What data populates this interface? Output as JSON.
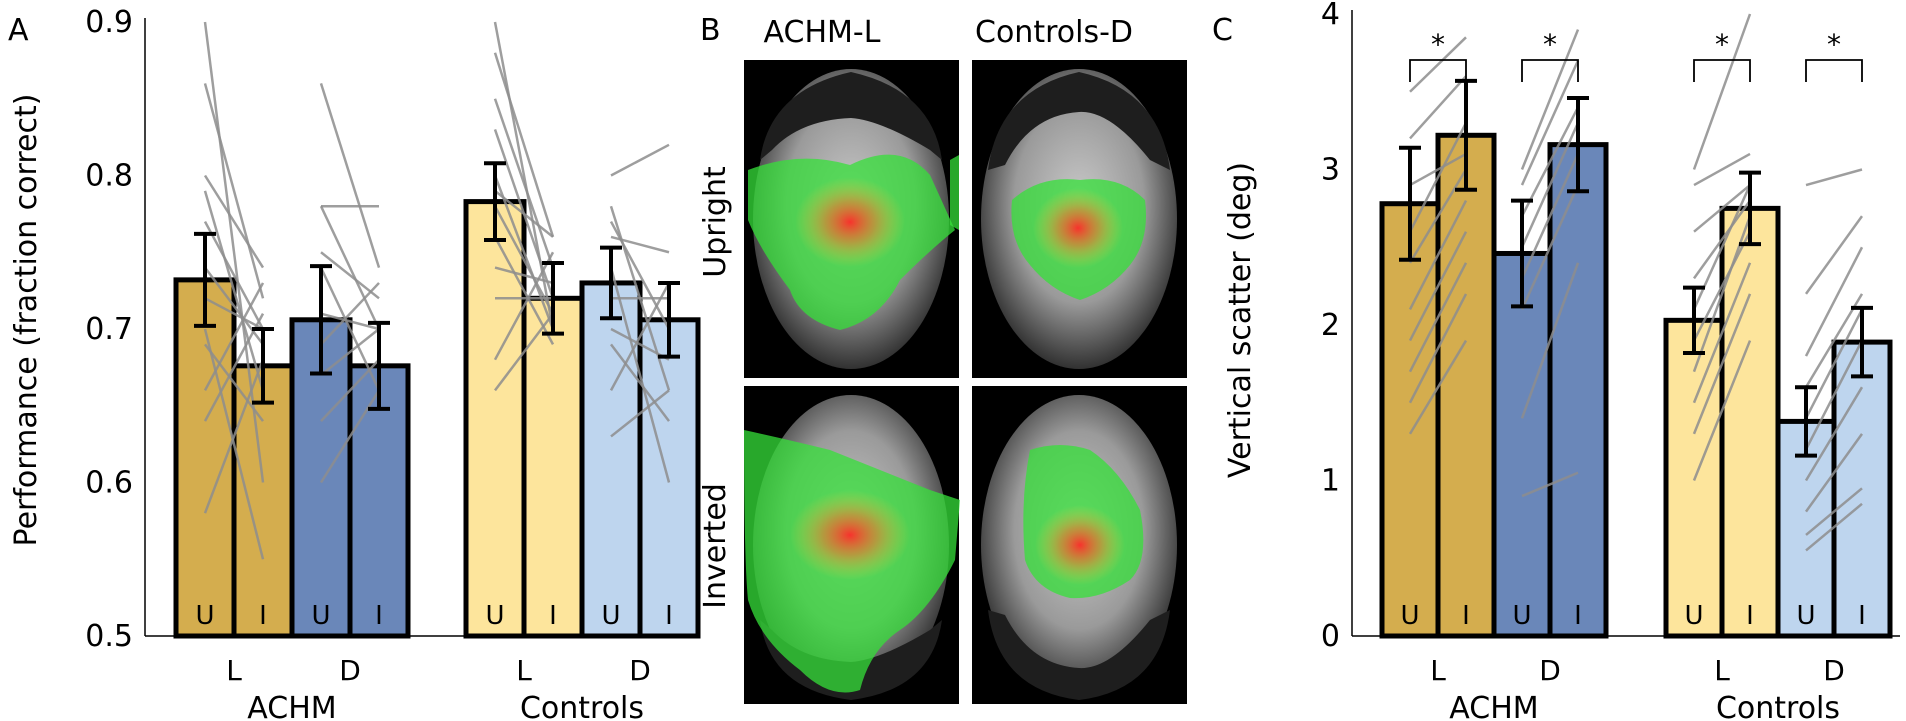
{
  "colors": {
    "achm_l": "#d4ad4e",
    "achm_d": "#6a87b9",
    "controls_l": "#fde59c",
    "controls_d": "#bed5ee",
    "lines": "#8e8e8e",
    "face_bg": "#000000",
    "heat_green": "#35e03a",
    "heat_red": "#ff2a2a"
  },
  "panel_b": {
    "letter": "B",
    "columns": [
      "ACHM-L",
      "Controls-D"
    ],
    "rows": [
      "Upright",
      "Inverted"
    ]
  },
  "chart_data": [
    {
      "panel": "A",
      "type": "bar",
      "title": "",
      "xlabel": "",
      "ylabel": "Performance (fraction correct)",
      "ylim": [
        0.5,
        0.9
      ],
      "yticks": [
        "0.5",
        "0.6",
        "0.7",
        "0.8",
        "0.9"
      ],
      "groups": [
        "ACHM",
        "Controls"
      ],
      "categories": [
        "L",
        "D",
        "L",
        "D"
      ],
      "bars": [
        {
          "group": "ACHM",
          "category": "L",
          "condition": "U",
          "value": 0.732,
          "err": 0.03,
          "color": "#d4ad4e"
        },
        {
          "group": "ACHM",
          "category": "L",
          "condition": "I",
          "value": 0.676,
          "err": 0.024,
          "color": "#d4ad4e"
        },
        {
          "group": "ACHM",
          "category": "D",
          "condition": "U",
          "value": 0.706,
          "err": 0.035,
          "color": "#6a87b9"
        },
        {
          "group": "ACHM",
          "category": "D",
          "condition": "I",
          "value": 0.676,
          "err": 0.028,
          "color": "#6a87b9"
        },
        {
          "group": "Controls",
          "category": "L",
          "condition": "U",
          "value": 0.783,
          "err": 0.025,
          "color": "#fde59c"
        },
        {
          "group": "Controls",
          "category": "L",
          "condition": "I",
          "value": 0.72,
          "err": 0.023,
          "color": "#fde59c"
        },
        {
          "group": "Controls",
          "category": "D",
          "condition": "U",
          "value": 0.73,
          "err": 0.023,
          "color": "#bed5ee"
        },
        {
          "group": "Controls",
          "category": "D",
          "condition": "I",
          "value": 0.706,
          "err": 0.024,
          "color": "#bed5ee"
        }
      ],
      "individual_lines": [
        {
          "pair": 0,
          "y": [
            0.9,
            0.6
          ]
        },
        {
          "pair": 0,
          "y": [
            0.86,
            0.72
          ]
        },
        {
          "pair": 0,
          "y": [
            0.8,
            0.74
          ]
        },
        {
          "pair": 0,
          "y": [
            0.79,
            0.66
          ]
        },
        {
          "pair": 0,
          "y": [
            0.77,
            0.7
          ]
        },
        {
          "pair": 0,
          "y": [
            0.74,
            0.69
          ]
        },
        {
          "pair": 0,
          "y": [
            0.72,
            0.7
          ]
        },
        {
          "pair": 0,
          "y": [
            0.7,
            0.55
          ]
        },
        {
          "pair": 0,
          "y": [
            0.69,
            0.64
          ]
        },
        {
          "pair": 0,
          "y": [
            0.66,
            0.73
          ]
        },
        {
          "pair": 0,
          "y": [
            0.64,
            0.71
          ]
        },
        {
          "pair": 0,
          "y": [
            0.58,
            0.68
          ]
        },
        {
          "pair": 1,
          "y": [
            0.86,
            0.74
          ]
        },
        {
          "pair": 1,
          "y": [
            0.78,
            0.78
          ]
        },
        {
          "pair": 1,
          "y": [
            0.78,
            0.7
          ]
        },
        {
          "pair": 1,
          "y": [
            0.75,
            0.72
          ]
        },
        {
          "pair": 1,
          "y": [
            0.74,
            0.66
          ]
        },
        {
          "pair": 1,
          "y": [
            0.71,
            0.7
          ]
        },
        {
          "pair": 1,
          "y": [
            0.69,
            0.73
          ]
        },
        {
          "pair": 1,
          "y": [
            0.67,
            0.7
          ]
        },
        {
          "pair": 1,
          "y": [
            0.64,
            0.68
          ]
        },
        {
          "pair": 1,
          "y": [
            0.6,
            0.66
          ]
        },
        {
          "pair": 2,
          "y": [
            0.9,
            0.7
          ]
        },
        {
          "pair": 2,
          "y": [
            0.88,
            0.76
          ]
        },
        {
          "pair": 2,
          "y": [
            0.85,
            0.74
          ]
        },
        {
          "pair": 2,
          "y": [
            0.83,
            0.72
          ]
        },
        {
          "pair": 2,
          "y": [
            0.8,
            0.7
          ]
        },
        {
          "pair": 2,
          "y": [
            0.79,
            0.76
          ]
        },
        {
          "pair": 2,
          "y": [
            0.78,
            0.71
          ]
        },
        {
          "pair": 2,
          "y": [
            0.76,
            0.69
          ]
        },
        {
          "pair": 2,
          "y": [
            0.74,
            0.73
          ]
        },
        {
          "pair": 2,
          "y": [
            0.72,
            0.72
          ]
        },
        {
          "pair": 2,
          "y": [
            0.68,
            0.75
          ]
        },
        {
          "pair": 2,
          "y": [
            0.66,
            0.71
          ]
        },
        {
          "pair": 3,
          "y": [
            0.8,
            0.82
          ]
        },
        {
          "pair": 3,
          "y": [
            0.78,
            0.66
          ]
        },
        {
          "pair": 3,
          "y": [
            0.77,
            0.7
          ]
        },
        {
          "pair": 3,
          "y": [
            0.76,
            0.75
          ]
        },
        {
          "pair": 3,
          "y": [
            0.74,
            0.6
          ]
        },
        {
          "pair": 3,
          "y": [
            0.72,
            0.72
          ]
        },
        {
          "pair": 3,
          "y": [
            0.7,
            0.68
          ]
        },
        {
          "pair": 3,
          "y": [
            0.69,
            0.64
          ]
        },
        {
          "pair": 3,
          "y": [
            0.66,
            0.73
          ]
        },
        {
          "pair": 3,
          "y": [
            0.63,
            0.66
          ]
        }
      ]
    },
    {
      "panel": "C",
      "type": "bar",
      "title": "",
      "xlabel": "",
      "ylabel": "Vertical scatter (deg)",
      "ylim": [
        0,
        4
      ],
      "yticks": [
        "0",
        "1",
        "2",
        "3",
        "4"
      ],
      "groups": [
        "ACHM",
        "Controls"
      ],
      "categories": [
        "L",
        "D",
        "L",
        "D"
      ],
      "significance": [
        "*",
        "*",
        "*",
        "*"
      ],
      "bars": [
        {
          "group": "ACHM",
          "category": "L",
          "condition": "U",
          "value": 2.78,
          "err": 0.36,
          "color": "#d4ad4e"
        },
        {
          "group": "ACHM",
          "category": "L",
          "condition": "I",
          "value": 3.22,
          "err": 0.35,
          "color": "#d4ad4e"
        },
        {
          "group": "ACHM",
          "category": "D",
          "condition": "U",
          "value": 2.46,
          "err": 0.34,
          "color": "#6a87b9"
        },
        {
          "group": "ACHM",
          "category": "D",
          "condition": "I",
          "value": 3.16,
          "err": 0.3,
          "color": "#6a87b9"
        },
        {
          "group": "Controls",
          "category": "L",
          "condition": "U",
          "value": 2.03,
          "err": 0.21,
          "color": "#fde59c"
        },
        {
          "group": "Controls",
          "category": "L",
          "condition": "I",
          "value": 2.75,
          "err": 0.23,
          "color": "#fde59c"
        },
        {
          "group": "Controls",
          "category": "D",
          "condition": "U",
          "value": 1.38,
          "err": 0.22,
          "color": "#bed5ee"
        },
        {
          "group": "Controls",
          "category": "D",
          "condition": "I",
          "value": 1.89,
          "err": 0.22,
          "color": "#bed5ee"
        }
      ],
      "individual_lines": [
        {
          "pair": 0,
          "y": [
            3.5,
            3.85
          ]
        },
        {
          "pair": 0,
          "y": [
            3.2,
            3.6
          ]
        },
        {
          "pair": 0,
          "y": [
            2.9,
            3.1
          ]
        },
        {
          "pair": 0,
          "y": [
            2.6,
            3.3
          ]
        },
        {
          "pair": 0,
          "y": [
            2.4,
            3.0
          ]
        },
        {
          "pair": 0,
          "y": [
            2.1,
            2.8
          ]
        },
        {
          "pair": 0,
          "y": [
            1.9,
            2.6
          ]
        },
        {
          "pair": 0,
          "y": [
            1.7,
            2.4
          ]
        },
        {
          "pair": 0,
          "y": [
            1.5,
            2.2
          ]
        },
        {
          "pair": 0,
          "y": [
            1.3,
            1.9
          ]
        },
        {
          "pair": 1,
          "y": [
            3.0,
            3.9
          ]
        },
        {
          "pair": 1,
          "y": [
            2.9,
            3.7
          ]
        },
        {
          "pair": 1,
          "y": [
            2.7,
            3.4
          ]
        },
        {
          "pair": 1,
          "y": [
            2.5,
            3.3
          ]
        },
        {
          "pair": 1,
          "y": [
            2.3,
            3.1
          ]
        },
        {
          "pair": 1,
          "y": [
            2.1,
            2.9
          ]
        },
        {
          "pair": 1,
          "y": [
            1.4,
            2.4
          ]
        },
        {
          "pair": 1,
          "y": [
            0.9,
            1.05
          ]
        },
        {
          "pair": 2,
          "y": [
            3.0,
            4.0
          ]
        },
        {
          "pair": 2,
          "y": [
            2.9,
            3.1
          ]
        },
        {
          "pair": 2,
          "y": [
            2.6,
            2.9
          ]
        },
        {
          "pair": 2,
          "y": [
            2.3,
            2.8
          ]
        },
        {
          "pair": 2,
          "y": [
            2.1,
            2.9
          ]
        },
        {
          "pair": 2,
          "y": [
            1.9,
            2.6
          ]
        },
        {
          "pair": 2,
          "y": [
            1.7,
            2.7
          ]
        },
        {
          "pair": 2,
          "y": [
            1.5,
            2.4
          ]
        },
        {
          "pair": 2,
          "y": [
            1.3,
            2.2
          ]
        },
        {
          "pair": 2,
          "y": [
            1.0,
            1.9
          ]
        },
        {
          "pair": 3,
          "y": [
            2.9,
            3.0
          ]
        },
        {
          "pair": 3,
          "y": [
            2.2,
            2.7
          ]
        },
        {
          "pair": 3,
          "y": [
            1.8,
            2.5
          ]
        },
        {
          "pair": 3,
          "y": [
            1.6,
            2.2
          ]
        },
        {
          "pair": 3,
          "y": [
            1.4,
            2.1
          ]
        },
        {
          "pair": 3,
          "y": [
            1.2,
            1.9
          ]
        },
        {
          "pair": 3,
          "y": [
            1.0,
            1.6
          ]
        },
        {
          "pair": 3,
          "y": [
            0.8,
            1.3
          ]
        },
        {
          "pair": 3,
          "y": [
            0.65,
            0.95
          ]
        },
        {
          "pair": 3,
          "y": [
            0.55,
            0.85
          ]
        }
      ]
    }
  ]
}
